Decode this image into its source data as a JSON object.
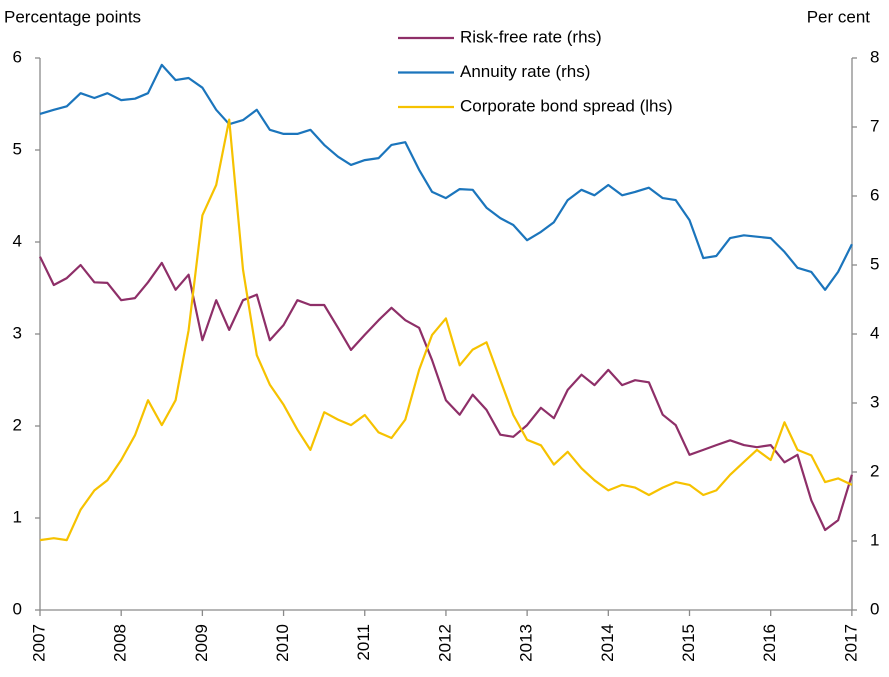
{
  "chart_data": {
    "type": "line",
    "y_label": "Percentage points",
    "y2_label": "Per cent",
    "x": [
      2007,
      2007.17,
      2007.33,
      2007.5,
      2007.67,
      2007.83,
      2008,
      2008.17,
      2008.33,
      2008.5,
      2008.67,
      2008.83,
      2009,
      2009.17,
      2009.33,
      2009.5,
      2009.67,
      2009.83,
      2010,
      2010.17,
      2010.33,
      2010.5,
      2010.67,
      2010.83,
      2011,
      2011.17,
      2011.33,
      2011.5,
      2011.67,
      2011.83,
      2012,
      2012.17,
      2012.33,
      2012.5,
      2012.67,
      2012.83,
      2013,
      2013.17,
      2013.33,
      2013.5,
      2013.67,
      2013.83,
      2014,
      2014.17,
      2014.33,
      2014.5,
      2014.67,
      2014.83,
      2015,
      2015.17,
      2015.33,
      2015.5,
      2015.67,
      2015.83,
      2016,
      2016.17,
      2016.33,
      2016.5,
      2016.67,
      2016.83,
      2017
    ],
    "series": [
      {
        "name": "Risk-free rate (rhs)",
        "color": "#8e2f68",
        "axis": "y2",
        "values": [
          5.12,
          4.71,
          4.81,
          5.0,
          4.75,
          4.74,
          4.49,
          4.52,
          4.75,
          5.03,
          4.64,
          4.86,
          3.91,
          4.49,
          4.06,
          4.49,
          4.57,
          3.91,
          4.13,
          4.49,
          4.42,
          4.42,
          4.09,
          3.77,
          3.99,
          4.2,
          4.38,
          4.2,
          4.09,
          3.62,
          3.04,
          2.83,
          3.12,
          2.9,
          2.54,
          2.51,
          2.68,
          2.93,
          2.78,
          3.19,
          3.41,
          3.26,
          3.48,
          3.26,
          3.33,
          3.3,
          2.83,
          2.68,
          2.25,
          2.32,
          2.39,
          2.46,
          2.39,
          2.36,
          2.39,
          2.14,
          2.25,
          1.59,
          1.16,
          1.3,
          1.96
        ]
      },
      {
        "name": "Annuity rate (rhs)",
        "color": "#1b75bc",
        "axis": "y2",
        "values": [
          7.19,
          7.25,
          7.3,
          7.49,
          7.42,
          7.49,
          7.39,
          7.41,
          7.49,
          7.9,
          7.68,
          7.71,
          7.57,
          7.25,
          7.04,
          7.1,
          7.25,
          6.96,
          6.9,
          6.9,
          6.96,
          6.74,
          6.57,
          6.45,
          6.52,
          6.55,
          6.74,
          6.78,
          6.38,
          6.06,
          5.97,
          6.1,
          6.09,
          5.83,
          5.68,
          5.58,
          5.36,
          5.48,
          5.62,
          5.94,
          6.09,
          6.01,
          6.16,
          6.01,
          6.06,
          6.12,
          5.97,
          5.94,
          5.65,
          5.1,
          5.13,
          5.39,
          5.43,
          5.41,
          5.39,
          5.19,
          4.96,
          4.9,
          4.64,
          4.9,
          5.3
        ]
      },
      {
        "name": "Corporate bond spread (lhs)",
        "color": "#f6c200",
        "values": [
          0.76,
          0.78,
          0.76,
          1.09,
          1.3,
          1.41,
          1.63,
          1.9,
          2.28,
          2.01,
          2.28,
          3.04,
          4.29,
          4.62,
          5.33,
          3.7,
          2.77,
          2.45,
          2.23,
          1.96,
          1.74,
          2.15,
          2.07,
          2.01,
          2.12,
          1.93,
          1.87,
          2.07,
          2.61,
          2.99,
          3.17,
          2.66,
          2.83,
          2.91,
          2.5,
          2.12,
          1.85,
          1.79,
          1.58,
          1.72,
          1.54,
          1.41,
          1.3,
          1.36,
          1.33,
          1.25,
          1.33,
          1.39,
          1.36,
          1.25,
          1.3,
          1.47,
          1.61,
          1.74,
          1.63,
          2.04,
          1.74,
          1.68,
          1.39,
          1.43,
          1.36
        ]
      }
    ],
    "xlim": [
      2007,
      2017.1
    ],
    "xticks": [
      2007,
      2008,
      2009,
      2010,
      2011,
      2012,
      2013,
      2014,
      2015,
      2016,
      2017
    ],
    "ylim": [
      0,
      6
    ],
    "yticks": [
      0,
      1,
      2,
      3,
      4,
      5,
      6
    ],
    "y2lim": [
      0,
      8
    ],
    "y2ticks": [
      0,
      1,
      2,
      3,
      4,
      5,
      6,
      7,
      8
    ],
    "legend": "top"
  }
}
